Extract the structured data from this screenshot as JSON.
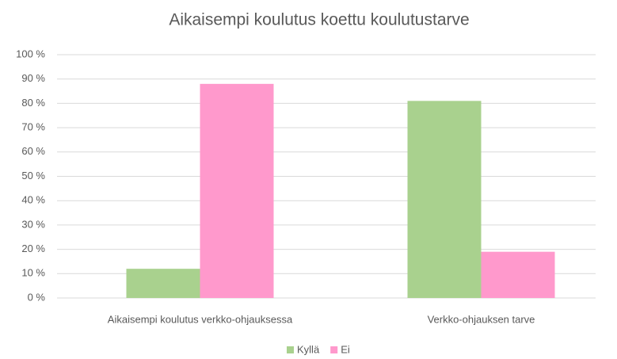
{
  "chart_data": {
    "type": "bar",
    "title": "Aikaisempi koulutus  koettu koulutustarve",
    "categories": [
      "Aikaisempi koulutus verkko-ohjauksessa",
      "Verkko-ohjauksen tarve"
    ],
    "series": [
      {
        "name": "Kyllä",
        "color": "#a9d18e",
        "values": [
          12,
          81
        ]
      },
      {
        "name": "Ei",
        "color": "#ff99cc",
        "values": [
          88,
          19
        ]
      }
    ],
    "ylim": [
      0,
      100
    ],
    "yticks": [
      {
        "value": 0,
        "label": "0 %"
      },
      {
        "value": 10,
        "label": "10 %"
      },
      {
        "value": 20,
        "label": "20 %"
      },
      {
        "value": 30,
        "label": "30 %"
      },
      {
        "value": 40,
        "label": "40 %"
      },
      {
        "value": 50,
        "label": "50 %"
      },
      {
        "value": 60,
        "label": "60 %"
      },
      {
        "value": 70,
        "label": "70 %"
      },
      {
        "value": 80,
        "label": "80 %"
      },
      {
        "value": 90,
        "label": "90 %"
      },
      {
        "value": 100,
        "label": "100 %"
      }
    ],
    "grid": true,
    "legend": "bottom"
  }
}
